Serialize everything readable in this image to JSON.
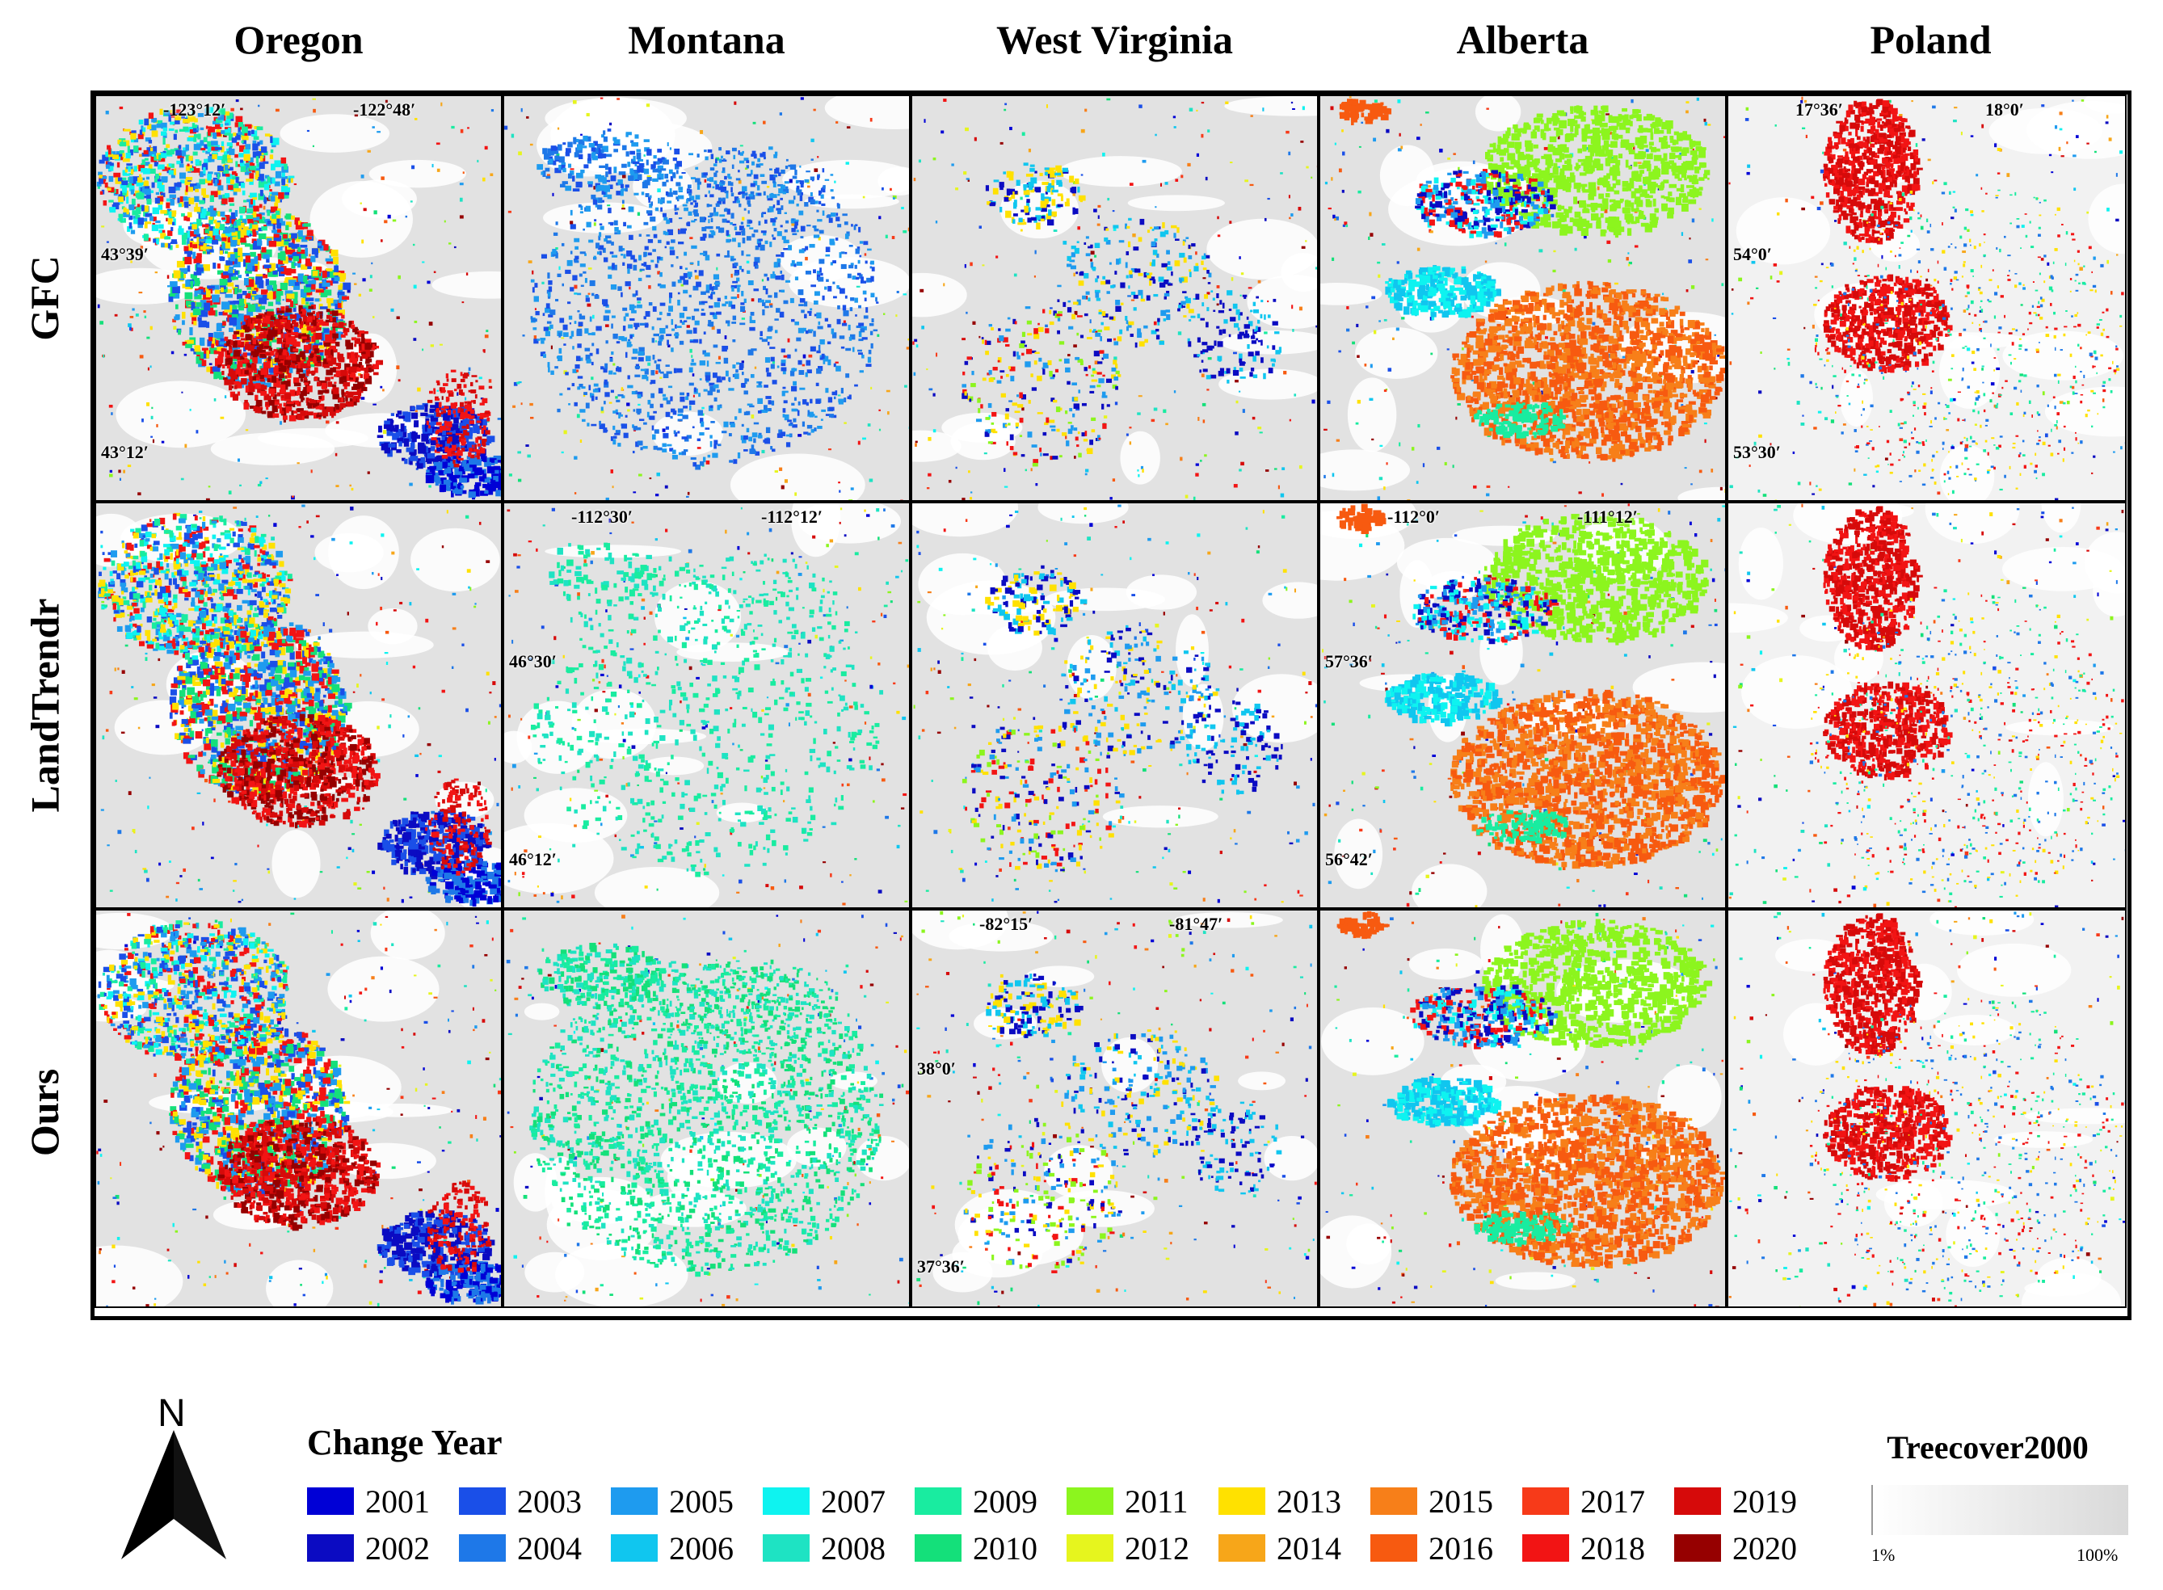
{
  "columns": [
    "Oregon",
    "Montana",
    "West Virginia",
    "Alberta",
    "Poland"
  ],
  "rows": [
    "GFC",
    "LandTrendr",
    "Ours"
  ],
  "coordinate_labels": [
    {
      "row": 0,
      "col": 0,
      "top_left": "-123°12′",
      "top_right": "-122°48′",
      "left_upper": "43°39′",
      "left_lower": "43°12′"
    },
    {
      "row": 1,
      "col": 1,
      "top_left": "-112°30′",
      "top_right": "-112°12′",
      "left_upper": "46°30′",
      "left_lower": "46°12′"
    },
    {
      "row": 2,
      "col": 2,
      "top_left": "-82°15′",
      "top_right": "-81°47′",
      "left_upper": "38°0′",
      "left_lower": "37°36′"
    },
    {
      "row": 1,
      "col": 3,
      "top_left": "-112°0′",
      "top_right": "-111°12′",
      "left_upper": "57°36′",
      "left_lower": "56°42′"
    },
    {
      "row": 0,
      "col": 4,
      "top_left": "17°36′",
      "top_right": "18°0′",
      "left_upper": "54°0′",
      "left_lower": "53°30′"
    }
  ],
  "north_arrow": {
    "letter": "N"
  },
  "legend": {
    "title": "Change Year",
    "items": [
      {
        "year": "2001",
        "color": "#0000d6"
      },
      {
        "year": "2002",
        "color": "#0b0bc2"
      },
      {
        "year": "2003",
        "color": "#1a4fe8"
      },
      {
        "year": "2004",
        "color": "#1e78e8"
      },
      {
        "year": "2005",
        "color": "#1e9bef"
      },
      {
        "year": "2006",
        "color": "#10c6ef"
      },
      {
        "year": "2007",
        "color": "#0ef3f0"
      },
      {
        "year": "2008",
        "color": "#1ee3c3"
      },
      {
        "year": "2009",
        "color": "#19eca0"
      },
      {
        "year": "2010",
        "color": "#14e07a"
      },
      {
        "year": "2011",
        "color": "#8cf51e"
      },
      {
        "year": "2012",
        "color": "#e6f51e"
      },
      {
        "year": "2013",
        "color": "#ffe100"
      },
      {
        "year": "2014",
        "color": "#f7a619"
      },
      {
        "year": "2015",
        "color": "#f77f19"
      },
      {
        "year": "2016",
        "color": "#f75a10"
      },
      {
        "year": "2017",
        "color": "#f73a19"
      },
      {
        "year": "2018",
        "color": "#f21414"
      },
      {
        "year": "2019",
        "color": "#d60a0a"
      },
      {
        "year": "2020",
        "color": "#960000"
      }
    ]
  },
  "treecover_legend": {
    "title": "Treecover2000",
    "min_label": "1%",
    "max_label": "100%",
    "color_low": "#ffffff",
    "color_high": "#d9d9d9"
  }
}
